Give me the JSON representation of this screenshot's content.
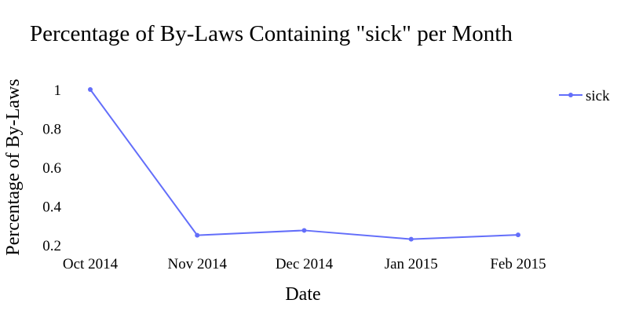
{
  "chart_data": {
    "type": "line",
    "title": "Percentage of By-Laws Containing \"sick\" per Month",
    "xlabel": "Date",
    "ylabel": "Percentage of By-Laws",
    "x": [
      "Oct 2014",
      "Nov 2014",
      "Dec 2014",
      "Jan 2015",
      "Feb 2015"
    ],
    "series": [
      {
        "name": "sick",
        "values": [
          1.0,
          0.25,
          0.275,
          0.23,
          0.252
        ],
        "color": "#636efa"
      }
    ],
    "ylim": [
      0.2,
      1.0
    ],
    "yticks": [
      "0.2",
      "0.4",
      "0.6",
      "0.8",
      "1"
    ],
    "grid": false,
    "legend_position": "top-right"
  }
}
